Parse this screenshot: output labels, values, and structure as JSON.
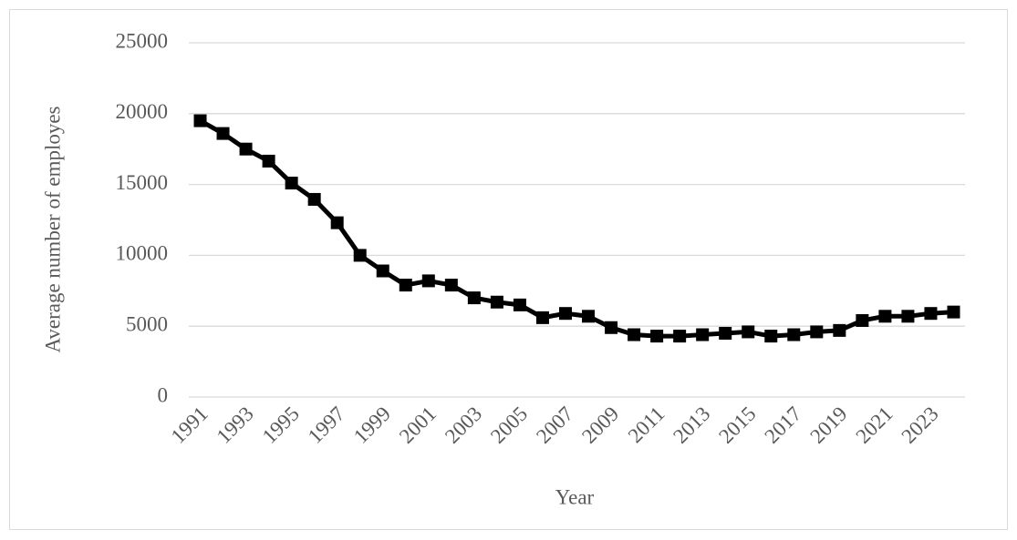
{
  "chart_data": {
    "type": "line",
    "x_label": "Year",
    "y_label": "Average number of employes",
    "categories": [
      "1991",
      null,
      "1993",
      null,
      "1995",
      null,
      "1997",
      null,
      "1999",
      null,
      "2001",
      null,
      "2003",
      null,
      "2005",
      null,
      "2007",
      null,
      "2009",
      null,
      "2011",
      null,
      "2013",
      null,
      "2015",
      null,
      "2017",
      null,
      "2019",
      null,
      "2021",
      null,
      "2023",
      null
    ],
    "values": [
      19500,
      18600,
      17500,
      16650,
      15100,
      13950,
      12300,
      10000,
      8900,
      7900,
      8200,
      7900,
      7000,
      6700,
      6500,
      5600,
      5900,
      5700,
      4900,
      4400,
      4300,
      4300,
      4400,
      4500,
      4600,
      4300,
      4400,
      4600,
      4700,
      5400,
      5700,
      5700,
      5900,
      6000
    ],
    "color": "#000000",
    "marker": "square",
    "ylim": [
      0,
      25000
    ],
    "yticks": [
      0,
      5000,
      10000,
      15000,
      20000,
      25000
    ],
    "grid": true
  }
}
